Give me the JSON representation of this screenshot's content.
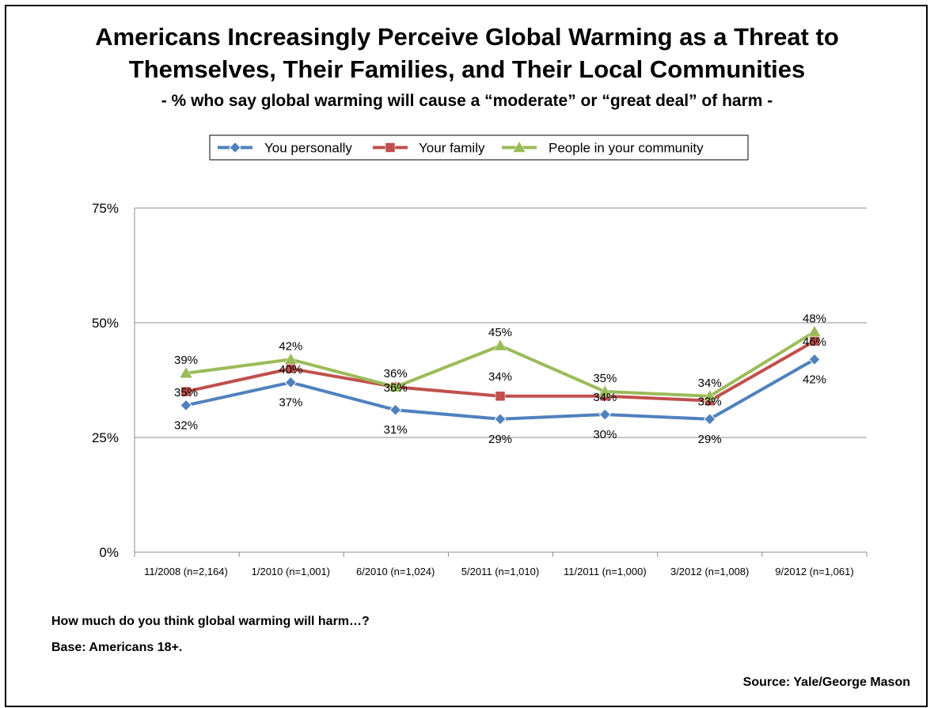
{
  "title_line1": "Americans Increasingly Perceive Global Warming as a Threat to",
  "title_line2": "Themselves, Their Families, and Their Local Communities",
  "subtitle": "- % who say global warming will cause a “moderate” or “great deal” of harm -",
  "question": "How much do you think global warming will harm…?",
  "base": "Base: Americans 18+.",
  "source": "Source: Yale/George Mason",
  "chart_data": {
    "type": "line",
    "categories": [
      "11/2008 (n=2,164)",
      "1/2010 (n=1,001)",
      "6/2010 (n=1,024)",
      "5/2011 (n=1,010)",
      "11/2011 (n=1,000)",
      "3/2012 (n=1,008)",
      "9/2012 (n=1,061)"
    ],
    "series": [
      {
        "name": "You personally",
        "color": "#4f81bd",
        "marker": "diamond",
        "values": [
          32,
          37,
          31,
          29,
          30,
          29,
          42
        ],
        "labels": [
          "32%",
          "37%",
          "31%",
          "29%",
          "30%",
          "29%",
          "42%"
        ],
        "label_position": "below"
      },
      {
        "name": "Your family",
        "color": "#c0504d",
        "marker": "square",
        "values": [
          35,
          40,
          36,
          34,
          34,
          33,
          46
        ],
        "labels": [
          "35%",
          "40%",
          "36%",
          "34%",
          "34%",
          "33%",
          "46%"
        ],
        "label_position": "mixed"
      },
      {
        "name": "People in your community",
        "color": "#9bbb59",
        "marker": "triangle",
        "values": [
          39,
          42,
          36,
          45,
          35,
          34,
          48
        ],
        "labels": [
          "39%",
          "42%",
          "36%",
          "45%",
          "35%",
          "34%",
          "48%"
        ],
        "label_position": "above"
      }
    ],
    "yticks": [
      "0%",
      "25%",
      "50%",
      "75%"
    ],
    "ytick_values": [
      0,
      25,
      50,
      75
    ],
    "ylim": [
      0,
      75
    ],
    "grid": true,
    "legend_position": "top-center"
  }
}
